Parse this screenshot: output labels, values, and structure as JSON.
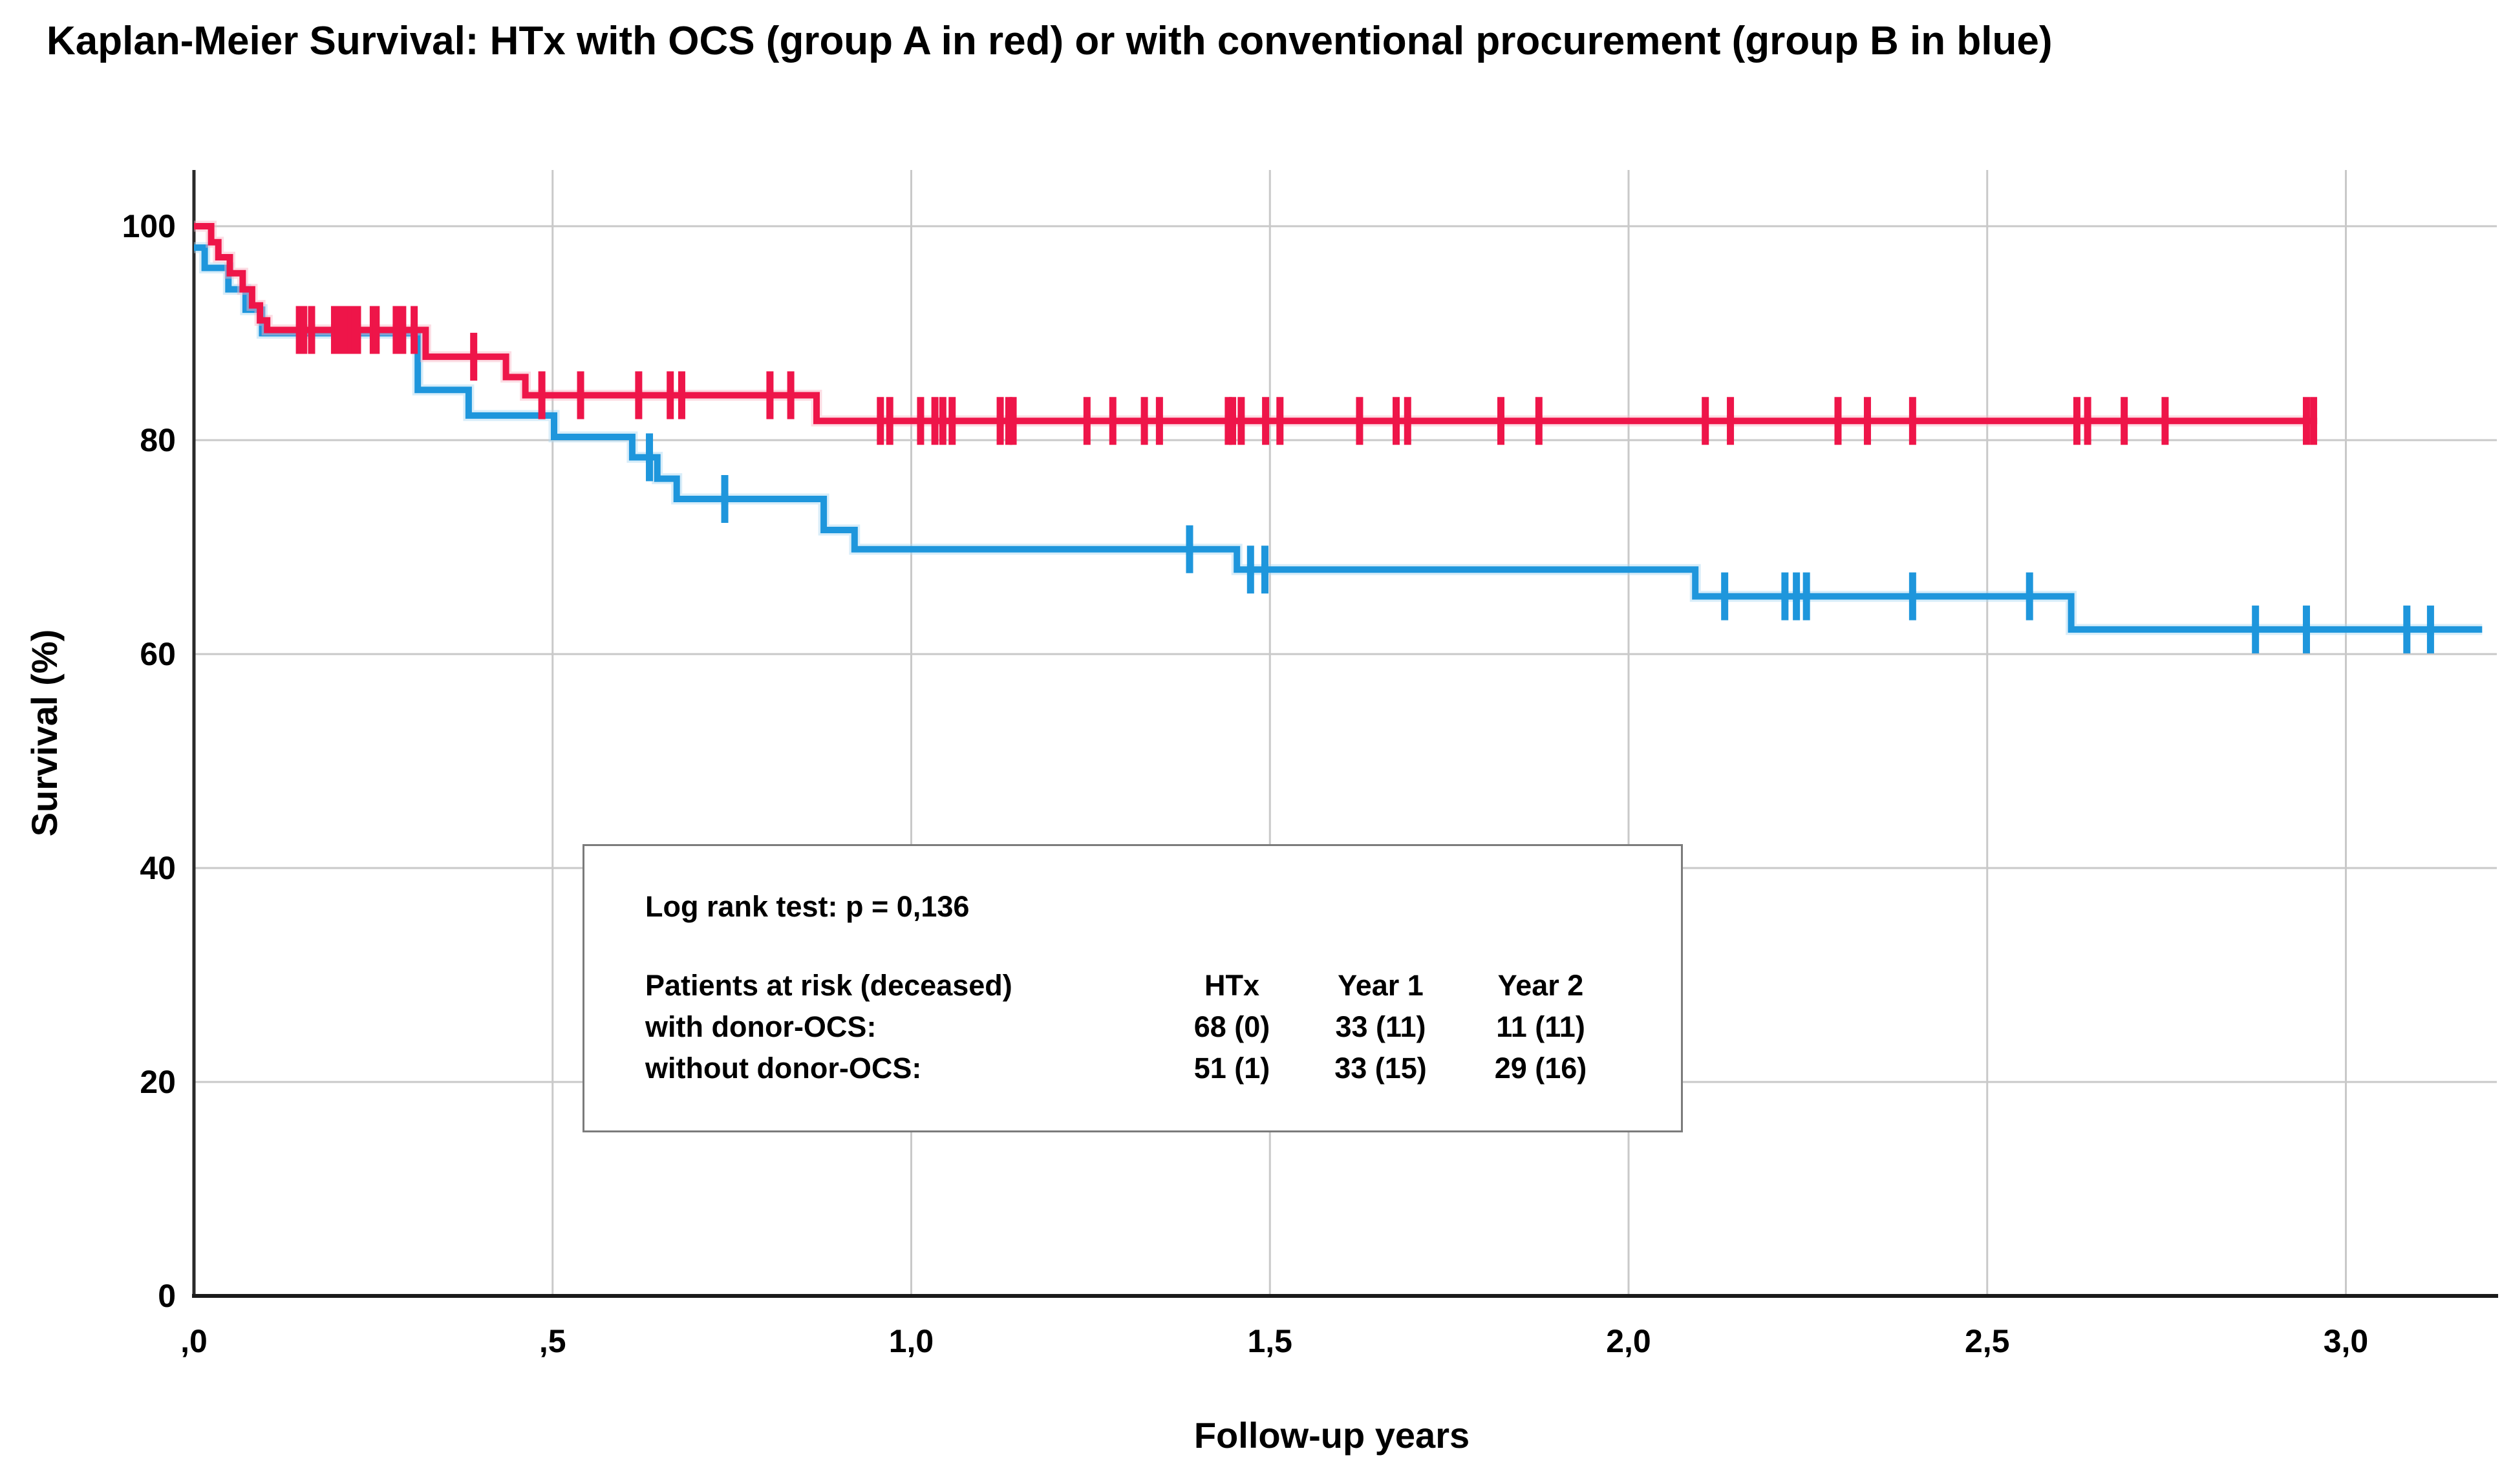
{
  "chart_data": {
    "type": "line",
    "subtype": "kaplan-meier-step-curves",
    "title": "Kaplan-Meier Survival: HTx with OCS (group A in red) or with conventional procurement (group B in blue)",
    "xlabel": "Follow-up years",
    "ylabel": "Survival (%)",
    "xlim": [
      0,
      3.21
    ],
    "ylim": [
      0,
      105
    ],
    "grid": true,
    "gridline_color": "#c9c9c9",
    "axis_color": "#2a2a2a",
    "x_ticks": [
      {
        "value": 0.0,
        "label": ",0"
      },
      {
        "value": 0.5,
        "label": ",5"
      },
      {
        "value": 1.0,
        "label": "1,0"
      },
      {
        "value": 1.5,
        "label": "1,5"
      },
      {
        "value": 2.0,
        "label": "2,0"
      },
      {
        "value": 2.5,
        "label": "2,5"
      },
      {
        "value": 3.0,
        "label": "3,0"
      }
    ],
    "y_ticks": [
      {
        "value": 0,
        "label": "0"
      },
      {
        "value": 20,
        "label": "20"
      },
      {
        "value": 40,
        "label": "40"
      },
      {
        "value": 60,
        "label": "60"
      },
      {
        "value": 80,
        "label": "80"
      },
      {
        "value": 100,
        "label": "100"
      }
    ],
    "series": [
      {
        "name": "group B: conventional procurement (without donor-OCS)",
        "color": "#1E96DC",
        "halo": "#A9D7F2",
        "steps": [
          [
            0,
            98.0
          ],
          [
            0.015,
            96.1
          ],
          [
            0.048,
            94.1
          ],
          [
            0.072,
            92.2
          ],
          [
            0.095,
            90.0
          ],
          [
            0.312,
            84.7
          ],
          [
            0.383,
            82.3
          ],
          [
            0.502,
            80.3
          ],
          [
            0.611,
            78.4
          ],
          [
            0.646,
            76.4
          ],
          [
            0.673,
            74.5
          ],
          [
            0.878,
            71.6
          ],
          [
            0.921,
            69.8
          ],
          [
            1.454,
            67.9
          ],
          [
            2.093,
            65.4
          ],
          [
            2.617,
            62.3
          ]
        ],
        "end_t": 3.19,
        "censor_marks": [
          [
            0.635,
            78.4
          ],
          [
            0.74,
            74.5
          ],
          [
            1.388,
            69.8
          ],
          [
            1.473,
            67.9
          ],
          [
            1.493,
            67.9
          ],
          [
            2.134,
            65.4
          ],
          [
            2.218,
            65.4
          ],
          [
            2.234,
            65.4
          ],
          [
            2.248,
            65.4
          ],
          [
            2.396,
            65.4
          ],
          [
            2.559,
            65.4
          ],
          [
            2.874,
            62.3
          ],
          [
            2.945,
            62.3
          ],
          [
            3.085,
            62.3
          ],
          [
            3.118,
            62.3
          ]
        ]
      },
      {
        "name": "group A: HTx with OCS (with donor-OCS)",
        "color": "#EE1549",
        "halo": "#F9B3C4",
        "steps": [
          [
            0,
            100
          ],
          [
            0.024,
            98.5
          ],
          [
            0.034,
            97.1
          ],
          [
            0.05,
            95.6
          ],
          [
            0.068,
            94.1
          ],
          [
            0.081,
            92.6
          ],
          [
            0.092,
            91.2
          ],
          [
            0.102,
            90.3
          ],
          [
            0.323,
            87.8
          ],
          [
            0.435,
            85.9
          ],
          [
            0.462,
            84.2
          ],
          [
            0.868,
            81.8
          ]
        ],
        "end_t": 2.96,
        "censor_marks": [
          [
            0.147,
            90.3
          ],
          [
            0.153,
            90.3
          ],
          [
            0.164,
            90.3
          ],
          [
            0.196,
            90.3
          ],
          [
            0.201,
            90.3
          ],
          [
            0.21,
            90.3
          ],
          [
            0.219,
            90.3
          ],
          [
            0.224,
            90.3
          ],
          [
            0.228,
            90.3
          ],
          [
            0.25,
            90.3
          ],
          [
            0.254,
            90.3
          ],
          [
            0.282,
            90.3
          ],
          [
            0.291,
            90.3
          ],
          [
            0.307,
            90.3
          ],
          [
            0.39,
            87.8
          ],
          [
            0.485,
            84.2
          ],
          [
            0.539,
            84.2
          ],
          [
            0.62,
            84.2
          ],
          [
            0.664,
            84.2
          ],
          [
            0.68,
            84.2
          ],
          [
            0.803,
            84.2
          ],
          [
            0.832,
            84.2
          ],
          [
            0.957,
            81.8
          ],
          [
            0.97,
            81.8
          ],
          [
            1.013,
            81.8
          ],
          [
            1.033,
            81.8
          ],
          [
            1.044,
            81.8
          ],
          [
            1.057,
            81.8
          ],
          [
            1.124,
            81.8
          ],
          [
            1.136,
            81.8
          ],
          [
            1.142,
            81.8
          ],
          [
            1.245,
            81.8
          ],
          [
            1.281,
            81.8
          ],
          [
            1.325,
            81.8
          ],
          [
            1.346,
            81.8
          ],
          [
            1.442,
            81.8
          ],
          [
            1.448,
            81.8
          ],
          [
            1.46,
            81.8
          ],
          [
            1.494,
            81.8
          ],
          [
            1.514,
            81.8
          ],
          [
            1.625,
            81.8
          ],
          [
            1.676,
            81.8
          ],
          [
            1.692,
            81.8
          ],
          [
            1.822,
            81.8
          ],
          [
            1.875,
            81.8
          ],
          [
            2.107,
            81.8
          ],
          [
            2.142,
            81.8
          ],
          [
            2.292,
            81.8
          ],
          [
            2.333,
            81.8
          ],
          [
            2.396,
            81.8
          ],
          [
            2.625,
            81.8
          ],
          [
            2.64,
            81.8
          ],
          [
            2.691,
            81.8
          ],
          [
            2.748,
            81.8
          ],
          [
            2.945,
            81.8
          ],
          [
            2.955,
            81.8
          ]
        ]
      }
    ],
    "annotation": {
      "logrank_text": "Log rank test: p = 0,136",
      "risk_table": {
        "header": {
          "label": "Patients at risk (deceased)",
          "col1": "HTx",
          "col2": "Year 1",
          "col3": "Year 2"
        },
        "rows": [
          {
            "label": "with donor-OCS:",
            "col1": "68 (0)",
            "col2": "33 (11)",
            "col3": "11 (11)"
          },
          {
            "label": "without donor-OCS:",
            "col1": "51 (1)",
            "col2": "33 (15)",
            "col3": "29 (16)"
          }
        ]
      }
    }
  }
}
